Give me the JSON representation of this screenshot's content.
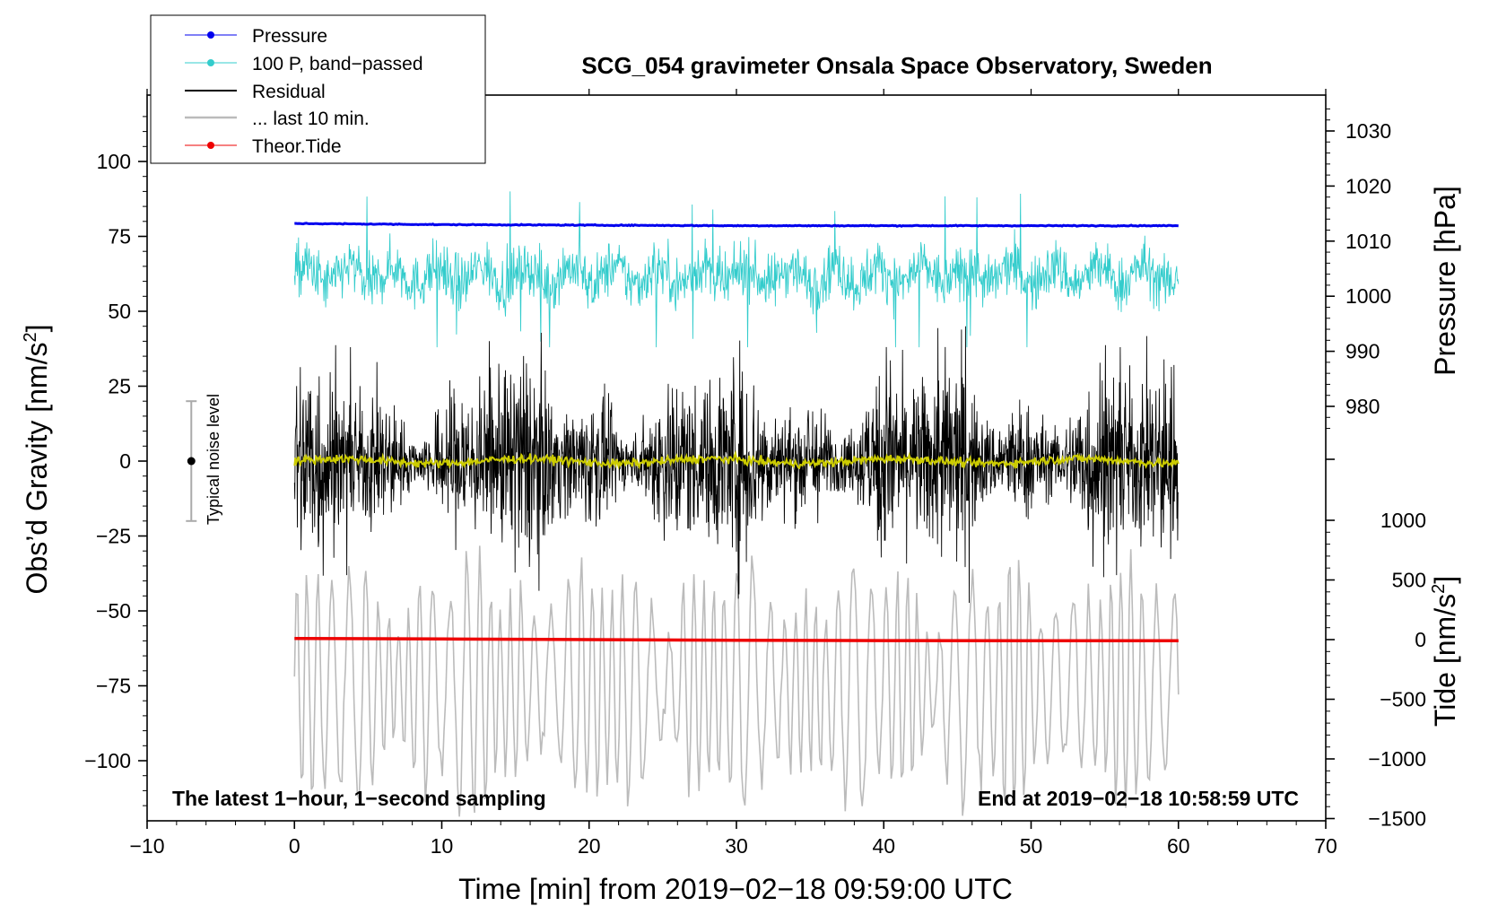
{
  "chart_data": {
    "type": "line",
    "title": "SCG_054 gravimeter Onsala Space Observatory, Sweden",
    "xlabel": "Time [min] from 2019−02−18 09:59:00 UTC",
    "ylabel_left_main": "Obs’d Gravity [nm/s",
    "ylabel_left_sup": "2",
    "ylabel_left_end": "]",
    "ylabel_right_pressure": "Pressure [hPa]",
    "ylabel_right_tide_main": "Tide [nm/s",
    "ylabel_right_tide_sup": "2",
    "ylabel_right_tide_end": "]",
    "xlim": [
      -10,
      70
    ],
    "ylim_left": [
      -120,
      120
    ],
    "ylim_pressure": [
      975,
      1036
    ],
    "ylim_tide": [
      -1500,
      1000
    ],
    "x_ticks": [
      {
        "v": -10,
        "t": "−10"
      },
      {
        "v": 0,
        "t": "0"
      },
      {
        "v": 10,
        "t": "10"
      },
      {
        "v": 20,
        "t": "20"
      },
      {
        "v": 30,
        "t": "30"
      },
      {
        "v": 40,
        "t": "40"
      },
      {
        "v": 50,
        "t": "50"
      },
      {
        "v": 60,
        "t": "60"
      },
      {
        "v": 70,
        "t": "70"
      }
    ],
    "y_ticks_left": [
      {
        "v": 100,
        "t": "100"
      },
      {
        "v": 75,
        "t": "75"
      },
      {
        "v": 50,
        "t": "50"
      },
      {
        "v": 25,
        "t": "25"
      },
      {
        "v": 0,
        "t": "0"
      },
      {
        "v": -25,
        "t": "−25"
      },
      {
        "v": -50,
        "t": "−50"
      },
      {
        "v": -75,
        "t": "−75"
      },
      {
        "v": -100,
        "t": "−100"
      }
    ],
    "y_ticks_pressure": [
      {
        "v": 1030,
        "t": "1030"
      },
      {
        "v": 1020,
        "t": "1020"
      },
      {
        "v": 1010,
        "t": "1010"
      },
      {
        "v": 1000,
        "t": "1000"
      },
      {
        "v": 990,
        "t": "990"
      },
      {
        "v": 980,
        "t": "980"
      }
    ],
    "y_ticks_tide": [
      {
        "v": 1000,
        "t": "1000"
      },
      {
        "v": 500,
        "t": "500"
      },
      {
        "v": 0,
        "t": "0"
      },
      {
        "v": -500,
        "t": "−500"
      },
      {
        "v": -1000,
        "t": "−1000"
      },
      {
        "v": -1500,
        "t": "−1500"
      }
    ],
    "legend": {
      "placement": "top-left",
      "entries": [
        {
          "label": "Pressure",
          "color": "#0000ee",
          "marker": true
        },
        {
          "label": "100 P, band−passed",
          "color": "#33cccc",
          "marker": true
        },
        {
          "label": "Residual",
          "color": "#000000",
          "marker": false
        },
        {
          "label": "... last 10 min.",
          "color": "#bbbbbb",
          "marker": false
        },
        {
          "label": "Theor.Tide",
          "color": "#ee0000",
          "marker": true
        }
      ]
    },
    "annotations": {
      "bottom_left": "The latest 1−hour, 1−second sampling",
      "bottom_right": "End at 2019−02−18 10:58:59 UTC",
      "noise_label": "Typical noise level"
    },
    "noise_bar": {
      "x": -7,
      "center": 0,
      "half_range": 20
    },
    "series": [
      {
        "name": "Pressure",
        "axis": "pressure",
        "color": "#0000ee",
        "x_range": [
          0,
          60
        ],
        "mean": 1013.0,
        "values_approx": [
          1013.2,
          1013.0,
          1012.9,
          1012.8,
          1012.8,
          1012.8,
          1012.8
        ]
      },
      {
        "name": "100 P, band-passed",
        "axis": "left",
        "color": "#33cccc",
        "x_range": [
          0,
          60
        ],
        "offset": 62,
        "amplitude": 10,
        "spike_range": [
          38,
          90
        ]
      },
      {
        "name": "Residual",
        "axis": "left",
        "color": "#000000",
        "x_range": [
          0,
          60
        ],
        "offset": 0,
        "amplitude": 28,
        "range": [
          -52,
          45
        ]
      },
      {
        "name": "Residual smoothed",
        "axis": "left",
        "color": "#cccc00",
        "x_range": [
          0,
          60
        ],
        "offset": 0,
        "amplitude": 2
      },
      {
        "name": "... last 10 min.",
        "axis": "left",
        "color": "#bbbbbb",
        "x_range": [
          0,
          60
        ],
        "offset": -75,
        "amplitude": 28,
        "range": [
          -125,
          -28
        ]
      },
      {
        "name": "Theor.Tide",
        "axis": "tide",
        "color": "#ee0000",
        "x": [
          0,
          10,
          20,
          30,
          40,
          50,
          60
        ],
        "values": [
          10,
          5,
          0,
          -5,
          -8,
          -10,
          -10
        ]
      }
    ]
  }
}
